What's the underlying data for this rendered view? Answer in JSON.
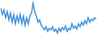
{
  "chart_data": {
    "type": "line",
    "categories": [
      null,
      null,
      null,
      null,
      null,
      null,
      null,
      null,
      null,
      null,
      null,
      null,
      null,
      null,
      null,
      null,
      null,
      null,
      null,
      null,
      null,
      null,
      null,
      null,
      null,
      null,
      null,
      null,
      null,
      null,
      null,
      null,
      null,
      null,
      null,
      null,
      null,
      null,
      null,
      null,
      null,
      null,
      null,
      null,
      null,
      null,
      null,
      null,
      null,
      null,
      null,
      null,
      null,
      null,
      null,
      null,
      null,
      null,
      null,
      null
    ],
    "values": [
      35,
      27,
      33,
      23,
      31,
      20,
      29,
      17,
      27,
      15,
      25,
      17,
      27,
      15,
      25,
      13,
      23,
      15,
      25,
      29,
      42,
      30,
      25,
      17,
      20,
      13,
      10,
      7,
      11,
      5,
      9,
      7,
      11,
      5,
      8,
      3,
      9,
      5,
      10,
      7,
      12,
      5,
      9,
      7,
      15,
      9,
      12,
      8,
      15,
      11,
      17,
      13,
      19,
      15,
      23,
      17,
      21,
      19,
      23,
      21
    ],
    "color": "#3a8fd8",
    "ylim": [
      0,
      45
    ],
    "grid": false,
    "tick_labels": false
  }
}
